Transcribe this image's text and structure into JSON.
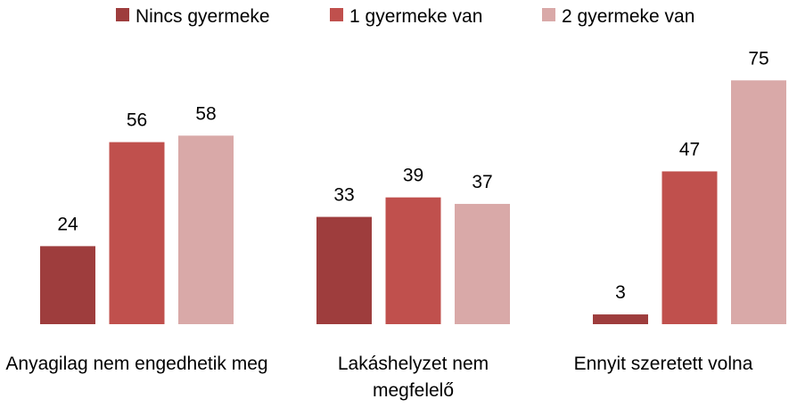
{
  "chart_data": {
    "type": "bar",
    "categories": [
      "Anyagilag nem engedhetik meg",
      "Lakáshelyzet nem megfelelő",
      "Ennyit szeretett volna"
    ],
    "series": [
      {
        "name": "Nincs gyermeke",
        "color": "#9e3d3d",
        "values": [
          24,
          33,
          3
        ]
      },
      {
        "name": "1 gyermeke van",
        "color": "#c0504d",
        "values": [
          56,
          39,
          47
        ]
      },
      {
        "name": "2 gyermeke van",
        "color": "#d9a9a8",
        "values": [
          58,
          37,
          75
        ]
      }
    ],
    "legend": "top"
  }
}
